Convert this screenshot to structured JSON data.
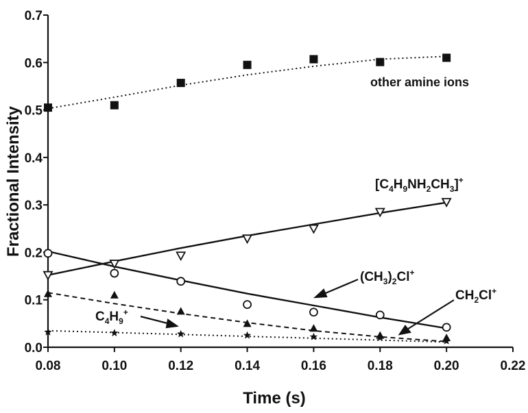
{
  "chart_data": {
    "type": "scatter",
    "title": "",
    "xlabel": "Time (s)",
    "ylabel": "Fractional Intensity",
    "xlim": [
      0.08,
      0.22
    ],
    "ylim": [
      0.0,
      0.7
    ],
    "x_ticks": [
      "0.08",
      "0.10",
      "0.12",
      "0.14",
      "0.16",
      "0.18",
      "0.20",
      "0.22"
    ],
    "y_ticks": [
      "0.0",
      "0.1",
      "0.2",
      "0.3",
      "0.4",
      "0.5",
      "0.6",
      "0.7"
    ],
    "grid": false,
    "legend": "none",
    "series": [
      {
        "name": "other amine ions",
        "marker": "filled-square",
        "line": "dotted",
        "x": [
          0.08,
          0.1,
          0.12,
          0.14,
          0.16,
          0.18,
          0.2
        ],
        "y": [
          0.505,
          0.51,
          0.557,
          0.595,
          0.607,
          0.601,
          0.61
        ],
        "fit": [
          [
            0.08,
            0.503
          ],
          [
            0.1,
            0.527
          ],
          [
            0.12,
            0.552
          ],
          [
            0.14,
            0.574
          ],
          [
            0.16,
            0.592
          ],
          [
            0.18,
            0.607
          ],
          [
            0.2,
            0.613
          ]
        ]
      },
      {
        "name": "[C4H9NH2CH3]+",
        "marker": "open-triangle-down",
        "line": "solid",
        "x": [
          0.08,
          0.1,
          0.12,
          0.14,
          0.16,
          0.18,
          0.2
        ],
        "y": [
          0.152,
          0.176,
          0.193,
          0.229,
          0.25,
          0.285,
          0.306
        ],
        "fit": [
          [
            0.08,
            0.152
          ],
          [
            0.1,
            0.181
          ],
          [
            0.12,
            0.209
          ],
          [
            0.14,
            0.235
          ],
          [
            0.16,
            0.259
          ],
          [
            0.18,
            0.283
          ],
          [
            0.2,
            0.305
          ]
        ]
      },
      {
        "name": "(CH3)2Cl+",
        "marker": "open-circle",
        "line": "solid",
        "x": [
          0.08,
          0.1,
          0.12,
          0.14,
          0.16,
          0.18,
          0.2
        ],
        "y": [
          0.198,
          0.156,
          0.139,
          0.09,
          0.074,
          0.068,
          0.042
        ],
        "fit": [
          [
            0.08,
            0.202
          ],
          [
            0.1,
            0.17
          ],
          [
            0.12,
            0.141
          ],
          [
            0.14,
            0.113
          ],
          [
            0.16,
            0.088
          ],
          [
            0.18,
            0.063
          ],
          [
            0.2,
            0.04
          ]
        ]
      },
      {
        "name": "CH2Cl+",
        "marker": "filled-triangle",
        "line": "dashed",
        "x": [
          0.08,
          0.1,
          0.12,
          0.14,
          0.16,
          0.18,
          0.2
        ],
        "y": [
          0.113,
          0.11,
          0.076,
          0.05,
          0.04,
          0.025,
          0.02
        ],
        "fit": [
          [
            0.08,
            0.115
          ],
          [
            0.1,
            0.092
          ],
          [
            0.12,
            0.071
          ],
          [
            0.14,
            0.052
          ],
          [
            0.16,
            0.035
          ],
          [
            0.18,
            0.022
          ],
          [
            0.2,
            0.012
          ]
        ]
      },
      {
        "name": "C4H9+",
        "marker": "filled-star",
        "line": "dotted",
        "x": [
          0.08,
          0.1,
          0.12,
          0.14,
          0.16,
          0.18,
          0.2
        ],
        "y": [
          0.032,
          0.03,
          0.028,
          0.025,
          0.022,
          0.02,
          0.013
        ],
        "fit": [
          [
            0.08,
            0.035
          ],
          [
            0.1,
            0.031
          ],
          [
            0.12,
            0.027
          ],
          [
            0.14,
            0.023
          ],
          [
            0.16,
            0.019
          ],
          [
            0.18,
            0.015
          ],
          [
            0.2,
            0.011
          ]
        ]
      }
    ],
    "annotations": {
      "other_amine": "other amine ions",
      "butyl_ammonium": {
        "part1": "[C",
        "sub1": "4",
        "part2": "H",
        "sub2": "9",
        "part3": "NH",
        "sub3": "2",
        "part4": "CH",
        "sub4": "3",
        "part5": "]",
        "sup": "+"
      },
      "dimethylchloronium": {
        "part1": "(CH",
        "sub1": "3",
        "part2": ")",
        "sub2": "2",
        "part3": "Cl",
        "sup": "+"
      },
      "chloromethyl": {
        "part1": "CH",
        "sub1": "2",
        "part2": "Cl",
        "sup": "+"
      },
      "butyl": {
        "part1": "C",
        "sub1": "4",
        "part2": "H",
        "sub2": "9",
        "sup": "+"
      }
    }
  }
}
